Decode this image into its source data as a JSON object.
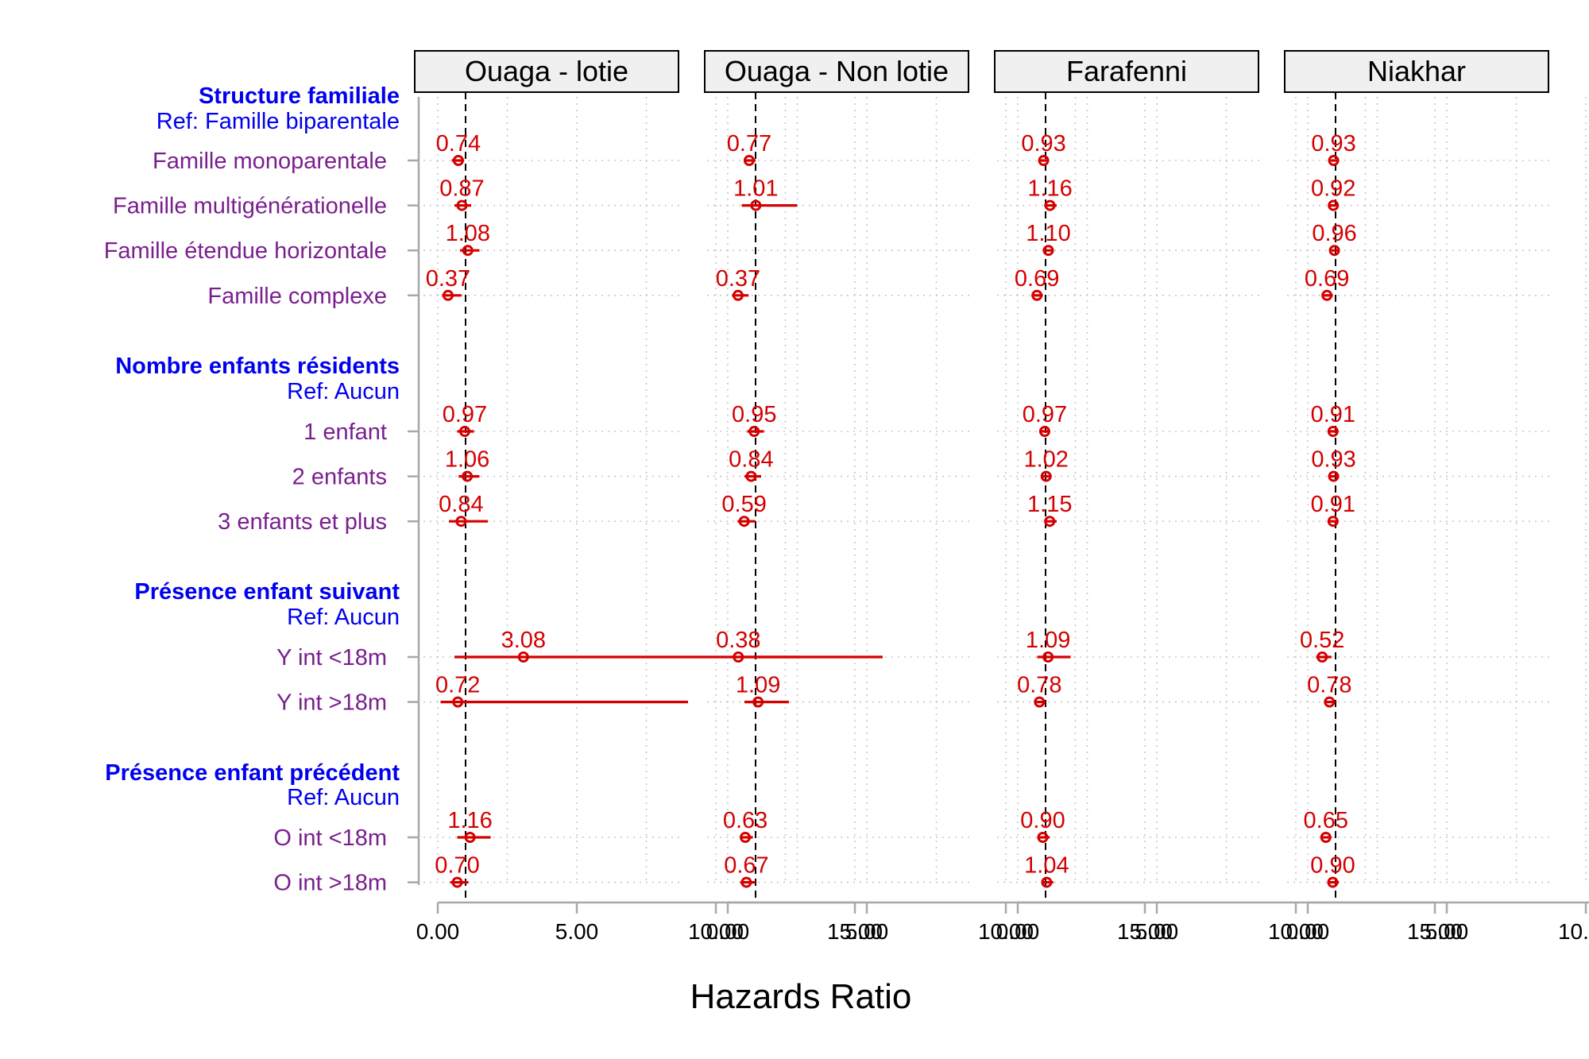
{
  "chart_data": {
    "type": "forest",
    "xlabel": "Hazards Ratio",
    "ylabel": "",
    "xlim": [
      0,
      15
    ],
    "xticks": [
      0,
      5,
      10,
      15
    ],
    "xtick_labels": [
      "0.00",
      "5.00",
      "10.00",
      "15.00"
    ],
    "reference_value": 1,
    "grid": true,
    "colors": {
      "point": "#d40000",
      "group_title": "#0000ee",
      "row_label": "#7a1f8e",
      "strip_fill": "#f0f0f0"
    },
    "panels": [
      "Ouaga - lotie",
      "Ouaga - Non lotie",
      "Farafenni",
      "Niakhar"
    ],
    "groups": [
      {
        "title": "Structure familiale",
        "ref": "Ref: Famille biparentale",
        "rows": [
          {
            "label": "Famille monoparentale",
            "hr": [
              0.74,
              0.77,
              0.93,
              0.93
            ],
            "hr_labels": [
              "0.74",
              "0.77",
              "0.93",
              "0.93"
            ],
            "ci": [
              [
                0.5,
                0.95
              ],
              [
                0.6,
                1.0
              ],
              [
                0.8,
                1.08
              ],
              [
                0.82,
                1.05
              ]
            ]
          },
          {
            "label": "Famille multigénérationelle",
            "hr": [
              0.87,
              1.01,
              1.16,
              0.92
            ],
            "hr_labels": [
              "0.87",
              "1.01",
              "1.16",
              "0.92"
            ],
            "ci": [
              [
                0.6,
                1.2
              ],
              [
                0.5,
                2.5
              ],
              [
                0.95,
                1.4
              ],
              [
                0.8,
                1.05
              ]
            ]
          },
          {
            "label": "Famille étendue horizontale",
            "hr": [
              1.08,
              1.1,
              0.96
            ],
            "hr_labels": [
              "1.08",
              "1.10",
              "0.96"
            ],
            "panel_index": [
              0,
              2,
              3
            ],
            "ci": [
              [
                0.8,
                1.5
              ],
              [
                0.95,
                1.28
              ],
              [
                0.85,
                1.1
              ]
            ]
          },
          {
            "label": "Famille complexe",
            "hr": [
              0.37,
              0.37,
              0.69,
              0.69
            ],
            "hr_labels": [
              "0.37",
              "0.37",
              "0.69",
              "0.69"
            ],
            "ci": [
              [
                0.15,
                0.85
              ],
              [
                0.15,
                0.75
              ],
              [
                0.5,
                0.9
              ],
              [
                0.5,
                0.9
              ]
            ]
          }
        ]
      },
      {
        "title": "Nombre enfants résidents",
        "ref": "Ref: Aucun",
        "rows": [
          {
            "label": "1 enfant",
            "hr": [
              0.97,
              0.95,
              0.97,
              0.91
            ],
            "hr_labels": [
              "0.97",
              "0.95",
              "0.97",
              "0.91"
            ],
            "ci": [
              [
                0.7,
                1.3
              ],
              [
                0.7,
                1.3
              ],
              [
                0.82,
                1.14
              ],
              [
                0.78,
                1.06
              ]
            ]
          },
          {
            "label": "2 enfants",
            "hr": [
              1.06,
              0.84,
              1.02,
              0.93
            ],
            "hr_labels": [
              "1.06",
              "0.84",
              "1.02",
              "0.93"
            ],
            "ci": [
              [
                0.75,
                1.5
              ],
              [
                0.6,
                1.2
              ],
              [
                0.85,
                1.22
              ],
              [
                0.78,
                1.1
              ]
            ]
          },
          {
            "label": "3 enfants et plus",
            "hr": [
              0.84,
              0.59,
              1.15,
              0.91
            ],
            "hr_labels": [
              "0.84",
              "0.59",
              "1.15",
              "0.91"
            ],
            "ci": [
              [
                0.4,
                1.8
              ],
              [
                0.35,
                1.0
              ],
              [
                0.95,
                1.4
              ],
              [
                0.75,
                1.1
              ]
            ]
          }
        ]
      },
      {
        "title": "Présence enfant suivant",
        "ref": "Ref: Aucun",
        "rows": [
          {
            "label": "Y int <18m",
            "hr": [
              3.08,
              0.38,
              1.09,
              0.52
            ],
            "hr_labels": [
              "3.08",
              "0.38",
              "1.09",
              "0.52"
            ],
            "ci": [
              [
                0.6,
                16.0
              ],
              [
                0.1,
                2.6
              ],
              [
                0.7,
                1.9
              ],
              [
                0.3,
                0.85
              ]
            ]
          },
          {
            "label": "Y int >18m",
            "hr": [
              0.72,
              1.09,
              0.78,
              0.78
            ],
            "hr_labels": [
              "0.72",
              "1.09",
              "0.78",
              "0.78"
            ],
            "ci": [
              [
                0.1,
                9.0
              ],
              [
                0.6,
                2.2
              ],
              [
                0.6,
                1.0
              ],
              [
                0.6,
                1.0
              ]
            ]
          }
        ]
      },
      {
        "title": "Présence enfant précédent",
        "ref": "Ref: Aucun",
        "rows": [
          {
            "label": "O int <18m",
            "hr": [
              1.16,
              0.63,
              0.9,
              0.65
            ],
            "hr_labels": [
              "1.16",
              "0.63",
              "0.90",
              "0.65"
            ],
            "ci": [
              [
                0.7,
                1.9
              ],
              [
                0.45,
                0.9
              ],
              [
                0.7,
                1.15
              ],
              [
                0.5,
                0.85
              ]
            ]
          },
          {
            "label": "O int >18m",
            "hr": [
              0.7,
              0.67,
              1.04,
              0.9
            ],
            "hr_labels": [
              "0.70",
              "0.67",
              "1.04",
              "0.90"
            ],
            "ci": [
              [
                0.45,
                1.1
              ],
              [
                0.45,
                1.0
              ],
              [
                0.85,
                1.28
              ],
              [
                0.72,
                1.12
              ]
            ]
          }
        ]
      }
    ]
  }
}
